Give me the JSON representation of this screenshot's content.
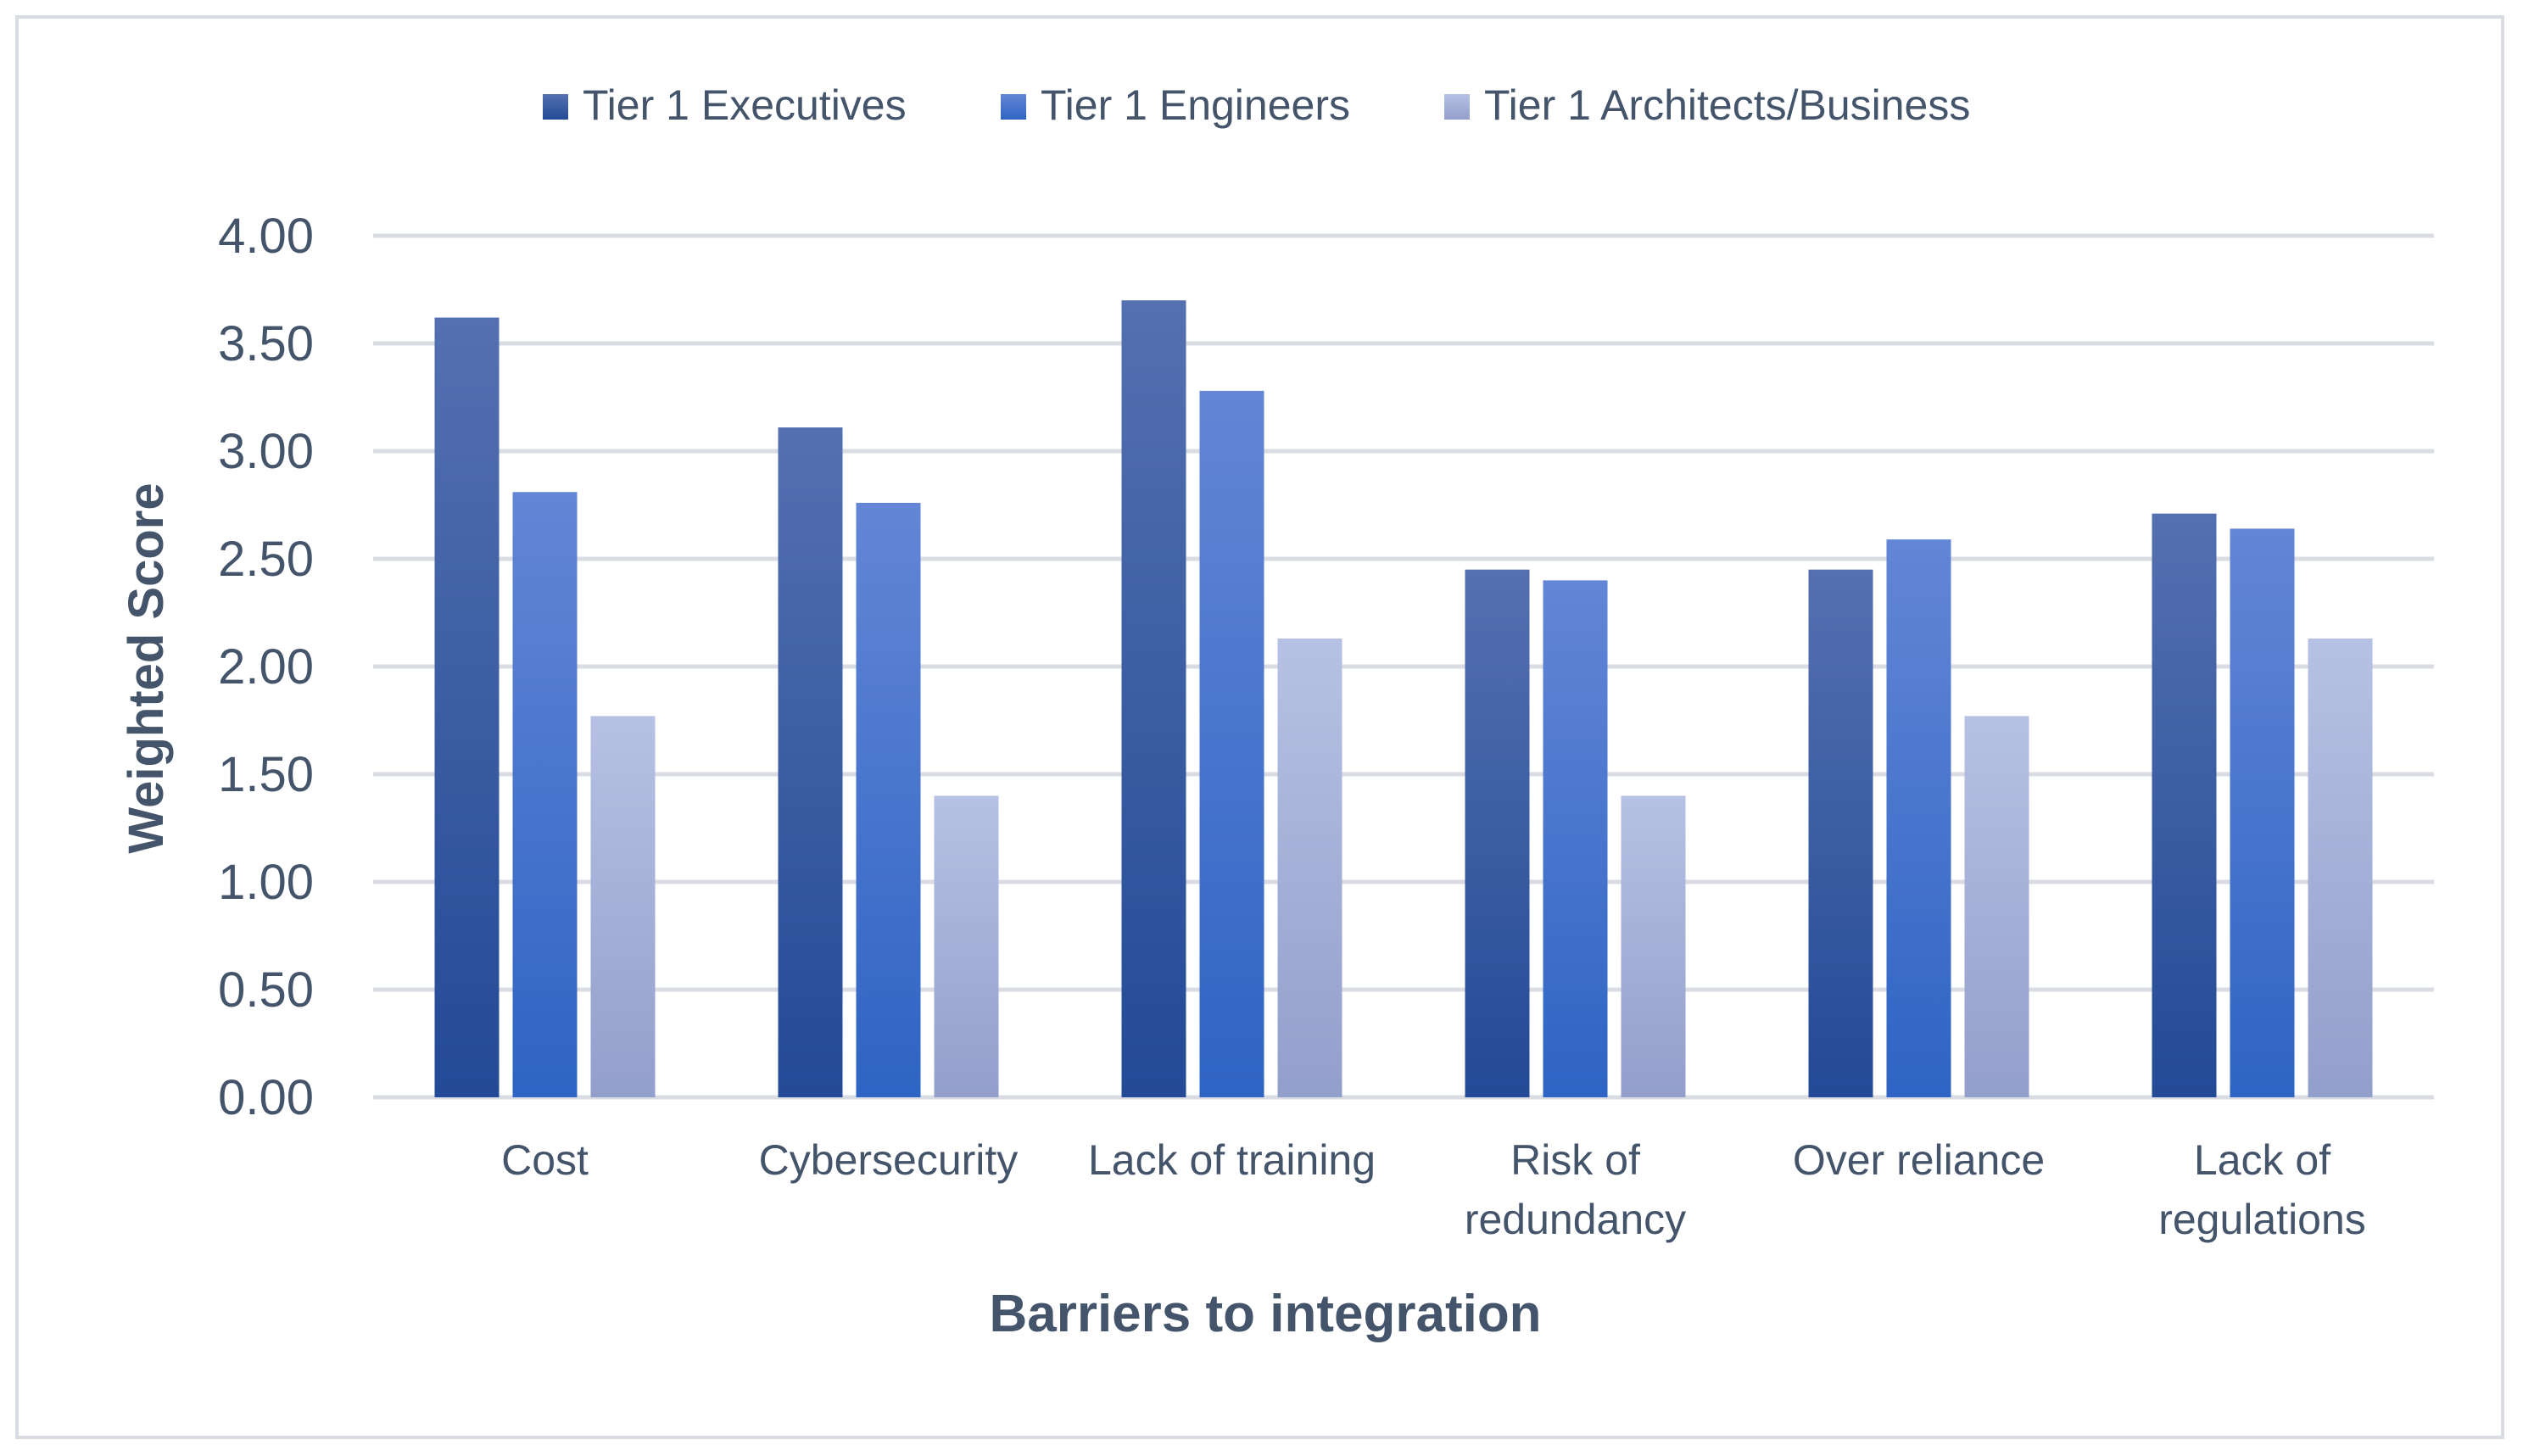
{
  "chart_data": {
    "type": "bar",
    "title": "",
    "xlabel": "Barriers to integration",
    "ylabel": "Weighted Score",
    "ylim": [
      0,
      4
    ],
    "yticks": [
      "0.00",
      "0.50",
      "1.00",
      "1.50",
      "2.00",
      "2.50",
      "3.00",
      "3.50",
      "4.00"
    ],
    "grid": true,
    "legend_position": "top",
    "categories": [
      [
        "Cost"
      ],
      [
        "Cybersecurity"
      ],
      [
        "Lack of training"
      ],
      [
        "Risk of",
        "redundancy"
      ],
      [
        "Over reliance"
      ],
      [
        "Lack of",
        "regulations"
      ]
    ],
    "series": [
      {
        "name": "Tier 1 Executives",
        "values": [
          3.62,
          3.11,
          3.7,
          2.45,
          2.45,
          2.71
        ]
      },
      {
        "name": "Tier 1 Engineers",
        "values": [
          2.81,
          2.76,
          3.28,
          2.4,
          2.59,
          2.64
        ]
      },
      {
        "name": "Tier 1 Architects/Business",
        "values": [
          1.77,
          1.4,
          2.13,
          1.4,
          1.77,
          2.13
        ]
      }
    ],
    "colors": {
      "executives_top": "#5470b0",
      "executives_bottom": "#234a96",
      "engineers_top": "#6386d6",
      "engineers_bottom": "#2e64c4",
      "architects_top": "#b6c1e4",
      "architects_bottom": "#939fcb",
      "text": "#44546a",
      "grid": "#d9dde3"
    }
  }
}
